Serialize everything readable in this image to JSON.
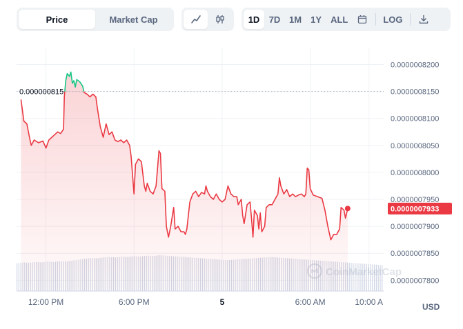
{
  "tabs": {
    "price_label": "Price",
    "market_cap_label": "Market Cap"
  },
  "view_icons": [
    "line-chart-icon",
    "candlestick-icon"
  ],
  "ranges": {
    "d1": "1D",
    "d7": "7D",
    "m1": "1M",
    "y1": "1Y",
    "all": "ALL",
    "log": "LOG"
  },
  "range_icons": [
    "calendar-icon",
    "download-icon"
  ],
  "currency_label": "USD",
  "watermark": "CoinMarketCap",
  "colors": {
    "down": "#ea3943",
    "up": "#16c784",
    "grid": "#eff2f5",
    "text": "#58667e"
  },
  "chart_data": {
    "type": "line",
    "y_ticks": [
      "0.0000008200",
      "0.0000008150",
      "0.0000008100",
      "0.0000008050",
      "0.0000008000",
      "0.0000007950",
      "0.0000007900",
      "0.0000007850",
      "0.0000007800"
    ],
    "y_tick_values": [
      8.2e-07,
      8.15e-07,
      8.1e-07,
      8.05e-07,
      8e-07,
      7.95e-07,
      7.9e-07,
      7.85e-07,
      7.8e-07
    ],
    "ylim": [
      7.78e-07,
      8.23e-07
    ],
    "x_ticks": [
      "12:00 PM",
      "6:00 PM",
      "5",
      "6:00 AM",
      "10:00 A"
    ],
    "x_tick_hours": [
      2.0,
      8.0,
      14.0,
      20.0,
      24.0
    ],
    "xlim": [
      0,
      25
    ],
    "reference_value": 8.15e-07,
    "reference_label": "0.000000815",
    "current_value": 7.933e-07,
    "current_label": "0.0000007933",
    "series": [
      {
        "color": "#ea3943",
        "up_color": "#16c784",
        "points": [
          [
            0.3,
            8.135e-07
          ],
          [
            0.5,
            8.095e-07
          ],
          [
            0.7,
            8.09e-07
          ],
          [
            0.9,
            8.062e-07
          ],
          [
            1.0,
            8.05e-07
          ],
          [
            1.2,
            8.06e-07
          ],
          [
            1.5,
            8.055e-07
          ],
          [
            1.8,
            8.058e-07
          ],
          [
            2.0,
            8.045e-07
          ],
          [
            2.2,
            8.06e-07
          ],
          [
            2.4,
            8.065e-07
          ],
          [
            2.6,
            8.07e-07
          ],
          [
            2.8,
            8.075e-07
          ],
          [
            3.0,
            8.072e-07
          ],
          [
            3.2,
            8.08e-07
          ],
          [
            3.25,
            8.14e-07
          ],
          [
            3.35,
            8.17e-07
          ],
          [
            3.45,
            8.183e-07
          ],
          [
            3.6,
            8.178e-07
          ],
          [
            3.7,
            8.186e-07
          ],
          [
            3.8,
            8.165e-07
          ],
          [
            3.9,
            8.17e-07
          ],
          [
            4.0,
            8.158e-07
          ],
          [
            4.1,
            8.172e-07
          ],
          [
            4.3,
            8.168e-07
          ],
          [
            4.5,
            8.16e-07
          ],
          [
            4.6,
            8.148e-07
          ],
          [
            4.8,
            8.145e-07
          ],
          [
            5.0,
            8.14e-07
          ],
          [
            5.2,
            8.145e-07
          ],
          [
            5.4,
            8.14e-07
          ],
          [
            5.5,
            8.12e-07
          ],
          [
            5.7,
            8.085e-07
          ],
          [
            5.9,
            8.065e-07
          ],
          [
            6.1,
            8.09e-07
          ],
          [
            6.3,
            8.07e-07
          ],
          [
            6.5,
            8.075e-07
          ],
          [
            6.7,
            8.06e-07
          ],
          [
            6.9,
            8.057e-07
          ],
          [
            7.1,
            8.06e-07
          ],
          [
            7.3,
            8.055e-07
          ],
          [
            7.5,
            8.06e-07
          ],
          [
            7.7,
            8.05e-07
          ],
          [
            7.8,
            8.03e-07
          ],
          [
            7.9,
            7.995e-07
          ],
          [
            8.0,
            7.96e-07
          ],
          [
            8.1,
            8.015e-07
          ],
          [
            8.3,
            8.025e-07
          ],
          [
            8.5,
            8.02e-07
          ],
          [
            8.7,
            7.975e-07
          ],
          [
            8.8,
            7.965e-07
          ],
          [
            8.9,
            7.98e-07
          ],
          [
            9.1,
            7.965e-07
          ],
          [
            9.3,
            7.96e-07
          ],
          [
            9.5,
            7.975e-07
          ],
          [
            9.7,
            8.04e-07
          ],
          [
            9.8,
            8.035e-07
          ],
          [
            9.9,
            7.97e-07
          ],
          [
            10.1,
            7.965e-07
          ],
          [
            10.2,
            7.9e-07
          ],
          [
            10.35,
            7.88e-07
          ],
          [
            10.5,
            7.9e-07
          ],
          [
            10.7,
            7.935e-07
          ],
          [
            10.8,
            7.895e-07
          ],
          [
            11.0,
            7.9e-07
          ],
          [
            11.2,
            7.89e-07
          ],
          [
            11.4,
            7.89e-07
          ],
          [
            11.5,
            7.885e-07
          ],
          [
            11.6,
            7.895e-07
          ],
          [
            11.8,
            7.945e-07
          ],
          [
            12.0,
            7.96e-07
          ],
          [
            12.2,
            7.965e-07
          ],
          [
            12.4,
            7.955e-07
          ],
          [
            12.6,
            7.963e-07
          ],
          [
            12.8,
            7.96e-07
          ],
          [
            12.9,
            7.975e-07
          ],
          [
            13.0,
            7.965e-07
          ],
          [
            13.2,
            7.955e-07
          ],
          [
            13.4,
            7.95e-07
          ],
          [
            13.6,
            7.96e-07
          ],
          [
            13.8,
            7.95e-07
          ],
          [
            14.0,
            7.945e-07
          ],
          [
            14.2,
            7.95e-07
          ],
          [
            14.4,
            7.975e-07
          ],
          [
            14.6,
            7.96e-07
          ],
          [
            14.8,
            7.955e-07
          ],
          [
            15.0,
            7.955e-07
          ],
          [
            15.1,
            7.94e-07
          ],
          [
            15.3,
            7.95e-07
          ],
          [
            15.4,
            7.92e-07
          ],
          [
            15.5,
            7.905e-07
          ],
          [
            15.7,
            7.94e-07
          ],
          [
            15.9,
            7.945e-07
          ],
          [
            16.0,
            7.915e-07
          ],
          [
            16.1,
            7.88e-07
          ],
          [
            16.2,
            7.93e-07
          ],
          [
            16.4,
            7.92e-07
          ],
          [
            16.5,
            7.895e-07
          ],
          [
            16.6,
            7.925e-07
          ],
          [
            16.7,
            7.89e-07
          ],
          [
            16.9,
            7.9e-07
          ],
          [
            17.0,
            7.935e-07
          ],
          [
            17.2,
            7.94e-07
          ],
          [
            17.4,
            7.94e-07
          ],
          [
            17.6,
            7.95e-07
          ],
          [
            17.8,
            7.96e-07
          ],
          [
            17.9,
            7.99e-07
          ],
          [
            18.0,
            7.975e-07
          ],
          [
            18.2,
            7.96e-07
          ],
          [
            18.4,
            7.968e-07
          ],
          [
            18.6,
            7.955e-07
          ],
          [
            18.8,
            7.96e-07
          ],
          [
            19.0,
            7.955e-07
          ],
          [
            19.2,
            7.958e-07
          ],
          [
            19.4,
            7.96e-07
          ],
          [
            19.6,
            7.955e-07
          ],
          [
            19.7,
            7.96e-07
          ],
          [
            19.8,
            8.008e-07
          ],
          [
            19.9,
            8.005e-07
          ],
          [
            20.0,
            7.97e-07
          ],
          [
            20.2,
            7.958e-07
          ],
          [
            20.5,
            7.955e-07
          ],
          [
            20.8,
            7.952e-07
          ],
          [
            21.0,
            7.93e-07
          ],
          [
            21.2,
            7.9e-07
          ],
          [
            21.4,
            7.875e-07
          ],
          [
            21.6,
            7.885e-07
          ],
          [
            21.8,
            7.885e-07
          ],
          [
            22.0,
            7.895e-07
          ],
          [
            22.1,
            7.935e-07
          ],
          [
            22.3,
            7.93e-07
          ],
          [
            22.4,
            7.915e-07
          ],
          [
            22.55,
            7.933e-07
          ]
        ]
      }
    ],
    "volume": {
      "color": "#cfd6e4",
      "bars": [
        0.62,
        0.64,
        0.63,
        0.65,
        0.64,
        0.66,
        0.65,
        0.67,
        0.66,
        0.68,
        0.7,
        0.72,
        0.74,
        0.73,
        0.75,
        0.76,
        0.75,
        0.77,
        0.76,
        0.78,
        0.77,
        0.79,
        0.78,
        0.8,
        0.79,
        0.78,
        0.77,
        0.76,
        0.75,
        0.74,
        0.73,
        0.72,
        0.71,
        0.7,
        0.69,
        0.7,
        0.71,
        0.72,
        0.73,
        0.74,
        0.75,
        0.76,
        0.75,
        0.74,
        0.73,
        0.72,
        0.71,
        0.7,
        0.69,
        0.68,
        0.67,
        0.66,
        0.65,
        0.64,
        0.63,
        0.62,
        0.61,
        0.6,
        0.59,
        0.58
      ]
    }
  }
}
